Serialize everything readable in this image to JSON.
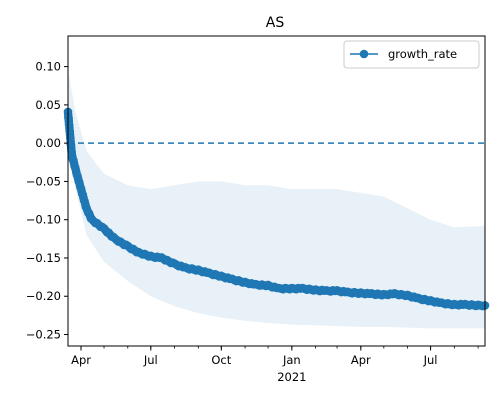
{
  "chart_data": {
    "type": "line",
    "title": "AS",
    "xlabel": "",
    "ylabel": "",
    "x_start": "2020-03-15",
    "x_end": "2021-09-10",
    "ylim": [
      -0.265,
      0.14
    ],
    "y_ticks": [
      0.1,
      0.05,
      0.0,
      -0.05,
      -0.1,
      -0.15,
      -0.2,
      -0.25
    ],
    "y_tick_labels": [
      "0.10",
      "0.05",
      "0.00",
      "−0.05",
      "−0.10",
      "−0.15",
      "−0.20",
      "−0.25"
    ],
    "x_ticks": [
      {
        "date": "2020-04-01",
        "label": "Apr"
      },
      {
        "date": "2020-07-01",
        "label": "Jul"
      },
      {
        "date": "2020-10-01",
        "label": "Oct"
      },
      {
        "date": "2021-01-01",
        "label": "Jan",
        "sublabel": "2021"
      },
      {
        "date": "2021-04-01",
        "label": "Apr"
      },
      {
        "date": "2021-07-01",
        "label": "Jul"
      }
    ],
    "reference_line": {
      "y": 0.0,
      "style": "dashed",
      "color": "#1f77b4"
    },
    "legend": {
      "position": "top-right",
      "entries": [
        "growth_rate"
      ]
    },
    "series": [
      {
        "name": "growth_rate",
        "color": "#1f77b4",
        "marker": "circle",
        "points": [
          [
            "2020-03-15",
            0.04
          ],
          [
            "2020-03-20",
            -0.015
          ],
          [
            "2020-03-25",
            -0.035
          ],
          [
            "2020-04-01",
            -0.06
          ],
          [
            "2020-04-08",
            -0.085
          ],
          [
            "2020-04-15",
            -0.1
          ],
          [
            "2020-05-01",
            -0.112
          ],
          [
            "2020-05-15",
            -0.125
          ],
          [
            "2020-06-01",
            -0.135
          ],
          [
            "2020-06-15",
            -0.143
          ],
          [
            "2020-07-01",
            -0.148
          ],
          [
            "2020-07-15",
            -0.15
          ],
          [
            "2020-08-01",
            -0.158
          ],
          [
            "2020-08-15",
            -0.163
          ],
          [
            "2020-09-01",
            -0.166
          ],
          [
            "2020-09-15",
            -0.17
          ],
          [
            "2020-10-01",
            -0.174
          ],
          [
            "2020-10-15",
            -0.178
          ],
          [
            "2020-11-01",
            -0.182
          ],
          [
            "2020-11-15",
            -0.185
          ],
          [
            "2020-12-01",
            -0.186
          ],
          [
            "2020-12-15",
            -0.19
          ],
          [
            "2021-01-01",
            -0.19
          ],
          [
            "2021-01-15",
            -0.19
          ],
          [
            "2021-02-01",
            -0.192
          ],
          [
            "2021-02-15",
            -0.193
          ],
          [
            "2021-03-01",
            -0.193
          ],
          [
            "2021-03-15",
            -0.195
          ],
          [
            "2021-04-01",
            -0.196
          ],
          [
            "2021-04-15",
            -0.197
          ],
          [
            "2021-05-01",
            -0.198
          ],
          [
            "2021-05-15",
            -0.197
          ],
          [
            "2021-06-01",
            -0.199
          ],
          [
            "2021-06-15",
            -0.203
          ],
          [
            "2021-07-01",
            -0.206
          ],
          [
            "2021-07-15",
            -0.209
          ],
          [
            "2021-08-01",
            -0.211
          ],
          [
            "2021-08-15",
            -0.211
          ],
          [
            "2021-09-01",
            -0.212
          ],
          [
            "2021-09-10",
            -0.212
          ]
        ]
      }
    ],
    "band": {
      "color": "#1f77b4",
      "opacity": 0.1,
      "upper": [
        [
          "2020-03-15",
          0.095
        ],
        [
          "2020-03-25",
          0.04
        ],
        [
          "2020-04-08",
          -0.01
        ],
        [
          "2020-05-01",
          -0.04
        ],
        [
          "2020-06-01",
          -0.055
        ],
        [
          "2020-07-01",
          -0.06
        ],
        [
          "2020-08-01",
          -0.055
        ],
        [
          "2020-09-01",
          -0.05
        ],
        [
          "2020-10-01",
          -0.05
        ],
        [
          "2020-11-01",
          -0.055
        ],
        [
          "2020-12-01",
          -0.055
        ],
        [
          "2021-01-01",
          -0.06
        ],
        [
          "2021-02-01",
          -0.06
        ],
        [
          "2021-03-01",
          -0.06
        ],
        [
          "2021-04-01",
          -0.065
        ],
        [
          "2021-05-01",
          -0.07
        ],
        [
          "2021-06-01",
          -0.085
        ],
        [
          "2021-07-01",
          -0.1
        ],
        [
          "2021-08-01",
          -0.11
        ],
        [
          "2021-09-10",
          -0.108
        ]
      ],
      "lower": [
        [
          "2020-03-15",
          0.0
        ],
        [
          "2020-03-25",
          -0.06
        ],
        [
          "2020-04-08",
          -0.12
        ],
        [
          "2020-05-01",
          -0.155
        ],
        [
          "2020-06-01",
          -0.18
        ],
        [
          "2020-07-01",
          -0.2
        ],
        [
          "2020-08-01",
          -0.213
        ],
        [
          "2020-09-01",
          -0.222
        ],
        [
          "2020-10-01",
          -0.228
        ],
        [
          "2020-11-01",
          -0.232
        ],
        [
          "2020-12-01",
          -0.235
        ],
        [
          "2021-01-01",
          -0.237
        ],
        [
          "2021-02-01",
          -0.238
        ],
        [
          "2021-03-01",
          -0.239
        ],
        [
          "2021-04-01",
          -0.24
        ],
        [
          "2021-05-01",
          -0.24
        ],
        [
          "2021-06-01",
          -0.241
        ],
        [
          "2021-07-01",
          -0.242
        ],
        [
          "2021-08-01",
          -0.242
        ],
        [
          "2021-09-10",
          -0.242
        ]
      ]
    }
  }
}
